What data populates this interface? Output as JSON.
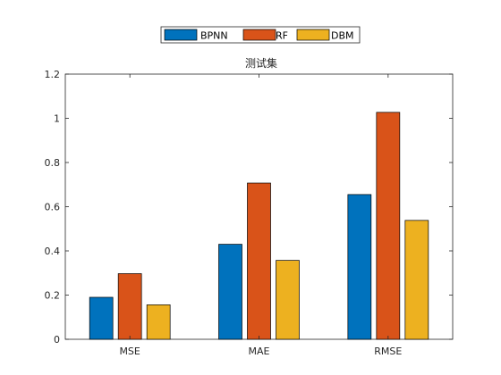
{
  "chart_data": {
    "type": "bar",
    "title": "测试集",
    "categories": [
      "MSE",
      "MAE",
      "RMSE"
    ],
    "series": [
      {
        "name": "BPNN",
        "values": [
          0.19,
          0.43,
          0.655
        ],
        "color": "#0072BD"
      },
      {
        "name": "RF",
        "values": [
          0.297,
          0.707,
          1.027
        ],
        "color": "#D95319"
      },
      {
        "name": "DBM",
        "values": [
          0.156,
          0.357,
          0.538
        ],
        "color": "#EDB120"
      }
    ],
    "xlabel": "",
    "ylabel": "",
    "ylim": [
      0,
      1.2
    ],
    "yticks": [
      0,
      0.2,
      0.4,
      0.6,
      0.8,
      1,
      1.2
    ],
    "ytick_labels": [
      "0",
      "0.2",
      "0.4",
      "0.6",
      "0.8",
      "1",
      "1.2"
    ],
    "legend_position": "top-center",
    "grid": false
  }
}
